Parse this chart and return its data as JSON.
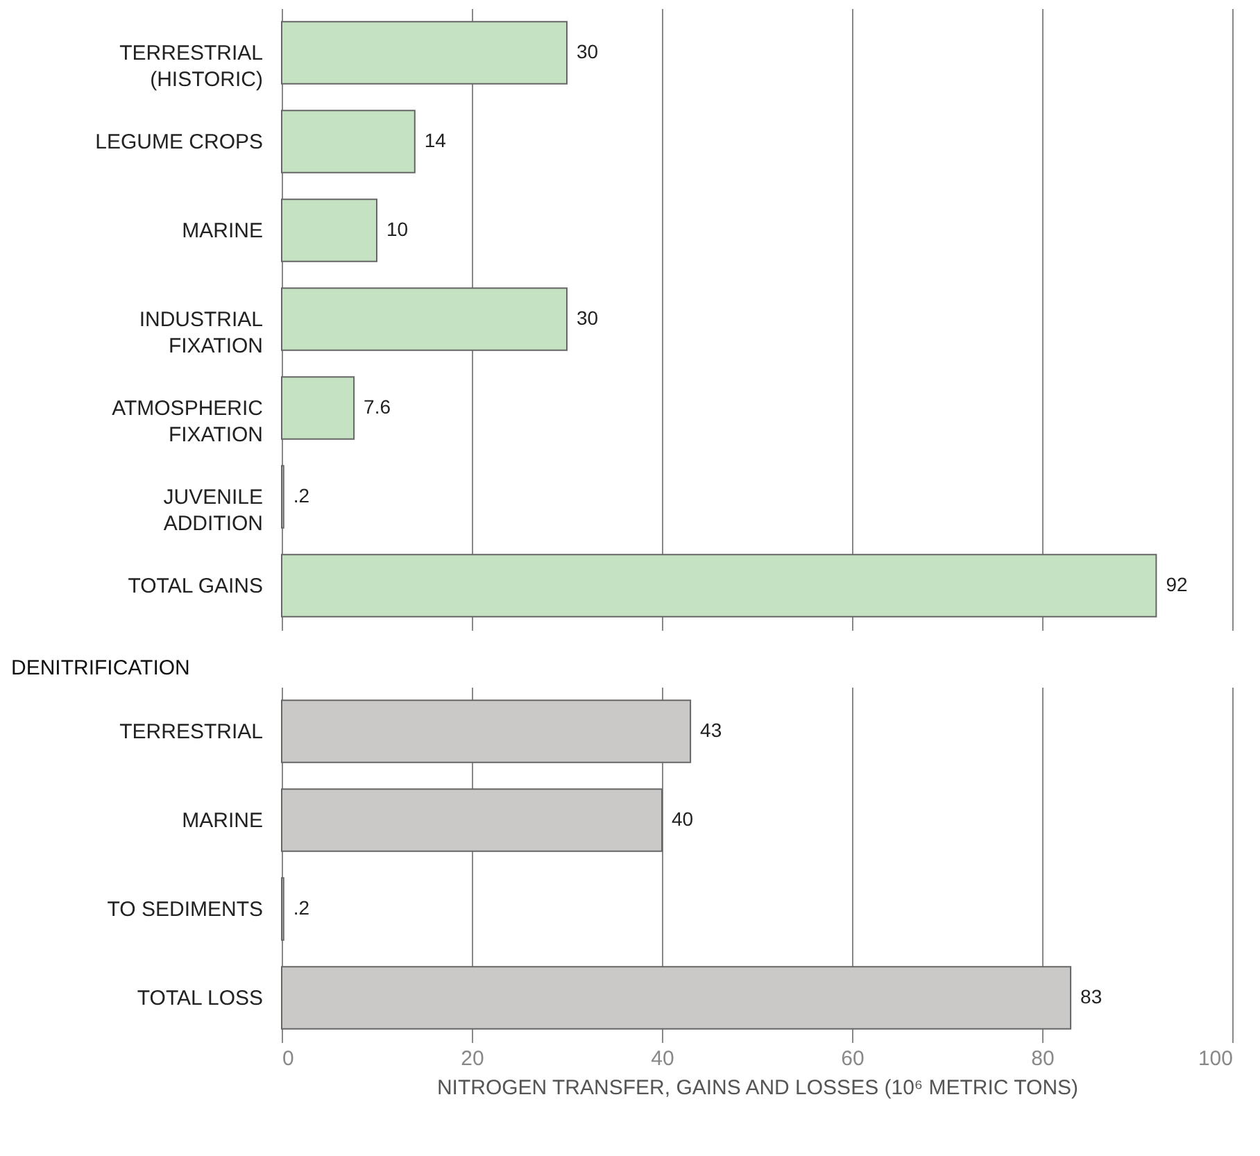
{
  "chart_data": [
    {
      "type": "bar",
      "orientation": "horizontal",
      "categories": [
        "TERRESTRIAL\n(HISTORIC)",
        "LEGUME CROPS",
        "MARINE",
        "INDUSTRIAL\nFIXATION",
        "ATMOSPHERIC\nFIXATION",
        "JUVENILE\nADDITION",
        "TOTAL GAINS"
      ],
      "values": [
        30,
        14,
        10,
        30,
        7.6,
        0.2,
        92
      ],
      "value_labels": [
        "30",
        "14",
        "10",
        "30",
        "7.6",
        ".2",
        "92"
      ],
      "color": "#c5e2c3",
      "xlim": [
        0,
        100
      ],
      "xticks": [
        0,
        20,
        40,
        60,
        80,
        100
      ],
      "grid": "x",
      "tick_labels": "y"
    },
    {
      "type": "bar",
      "orientation": "horizontal",
      "title": "DENITRIFICATION",
      "xlabel": "NITROGEN TRANSFER, GAINS AND LOSSES (10⁶ METRIC TONS)",
      "categories": [
        "TERRESTRIAL",
        "MARINE",
        "TO SEDIMENTS",
        "TOTAL LOSS"
      ],
      "values": [
        43,
        40,
        0.2,
        83
      ],
      "value_labels": [
        "43",
        "40",
        ".2",
        "83"
      ],
      "color": "#cbc8c8",
      "xlim": [
        0,
        100
      ],
      "xticks": [
        0,
        20,
        40,
        60,
        80,
        100
      ],
      "grid": "x"
    }
  ]
}
